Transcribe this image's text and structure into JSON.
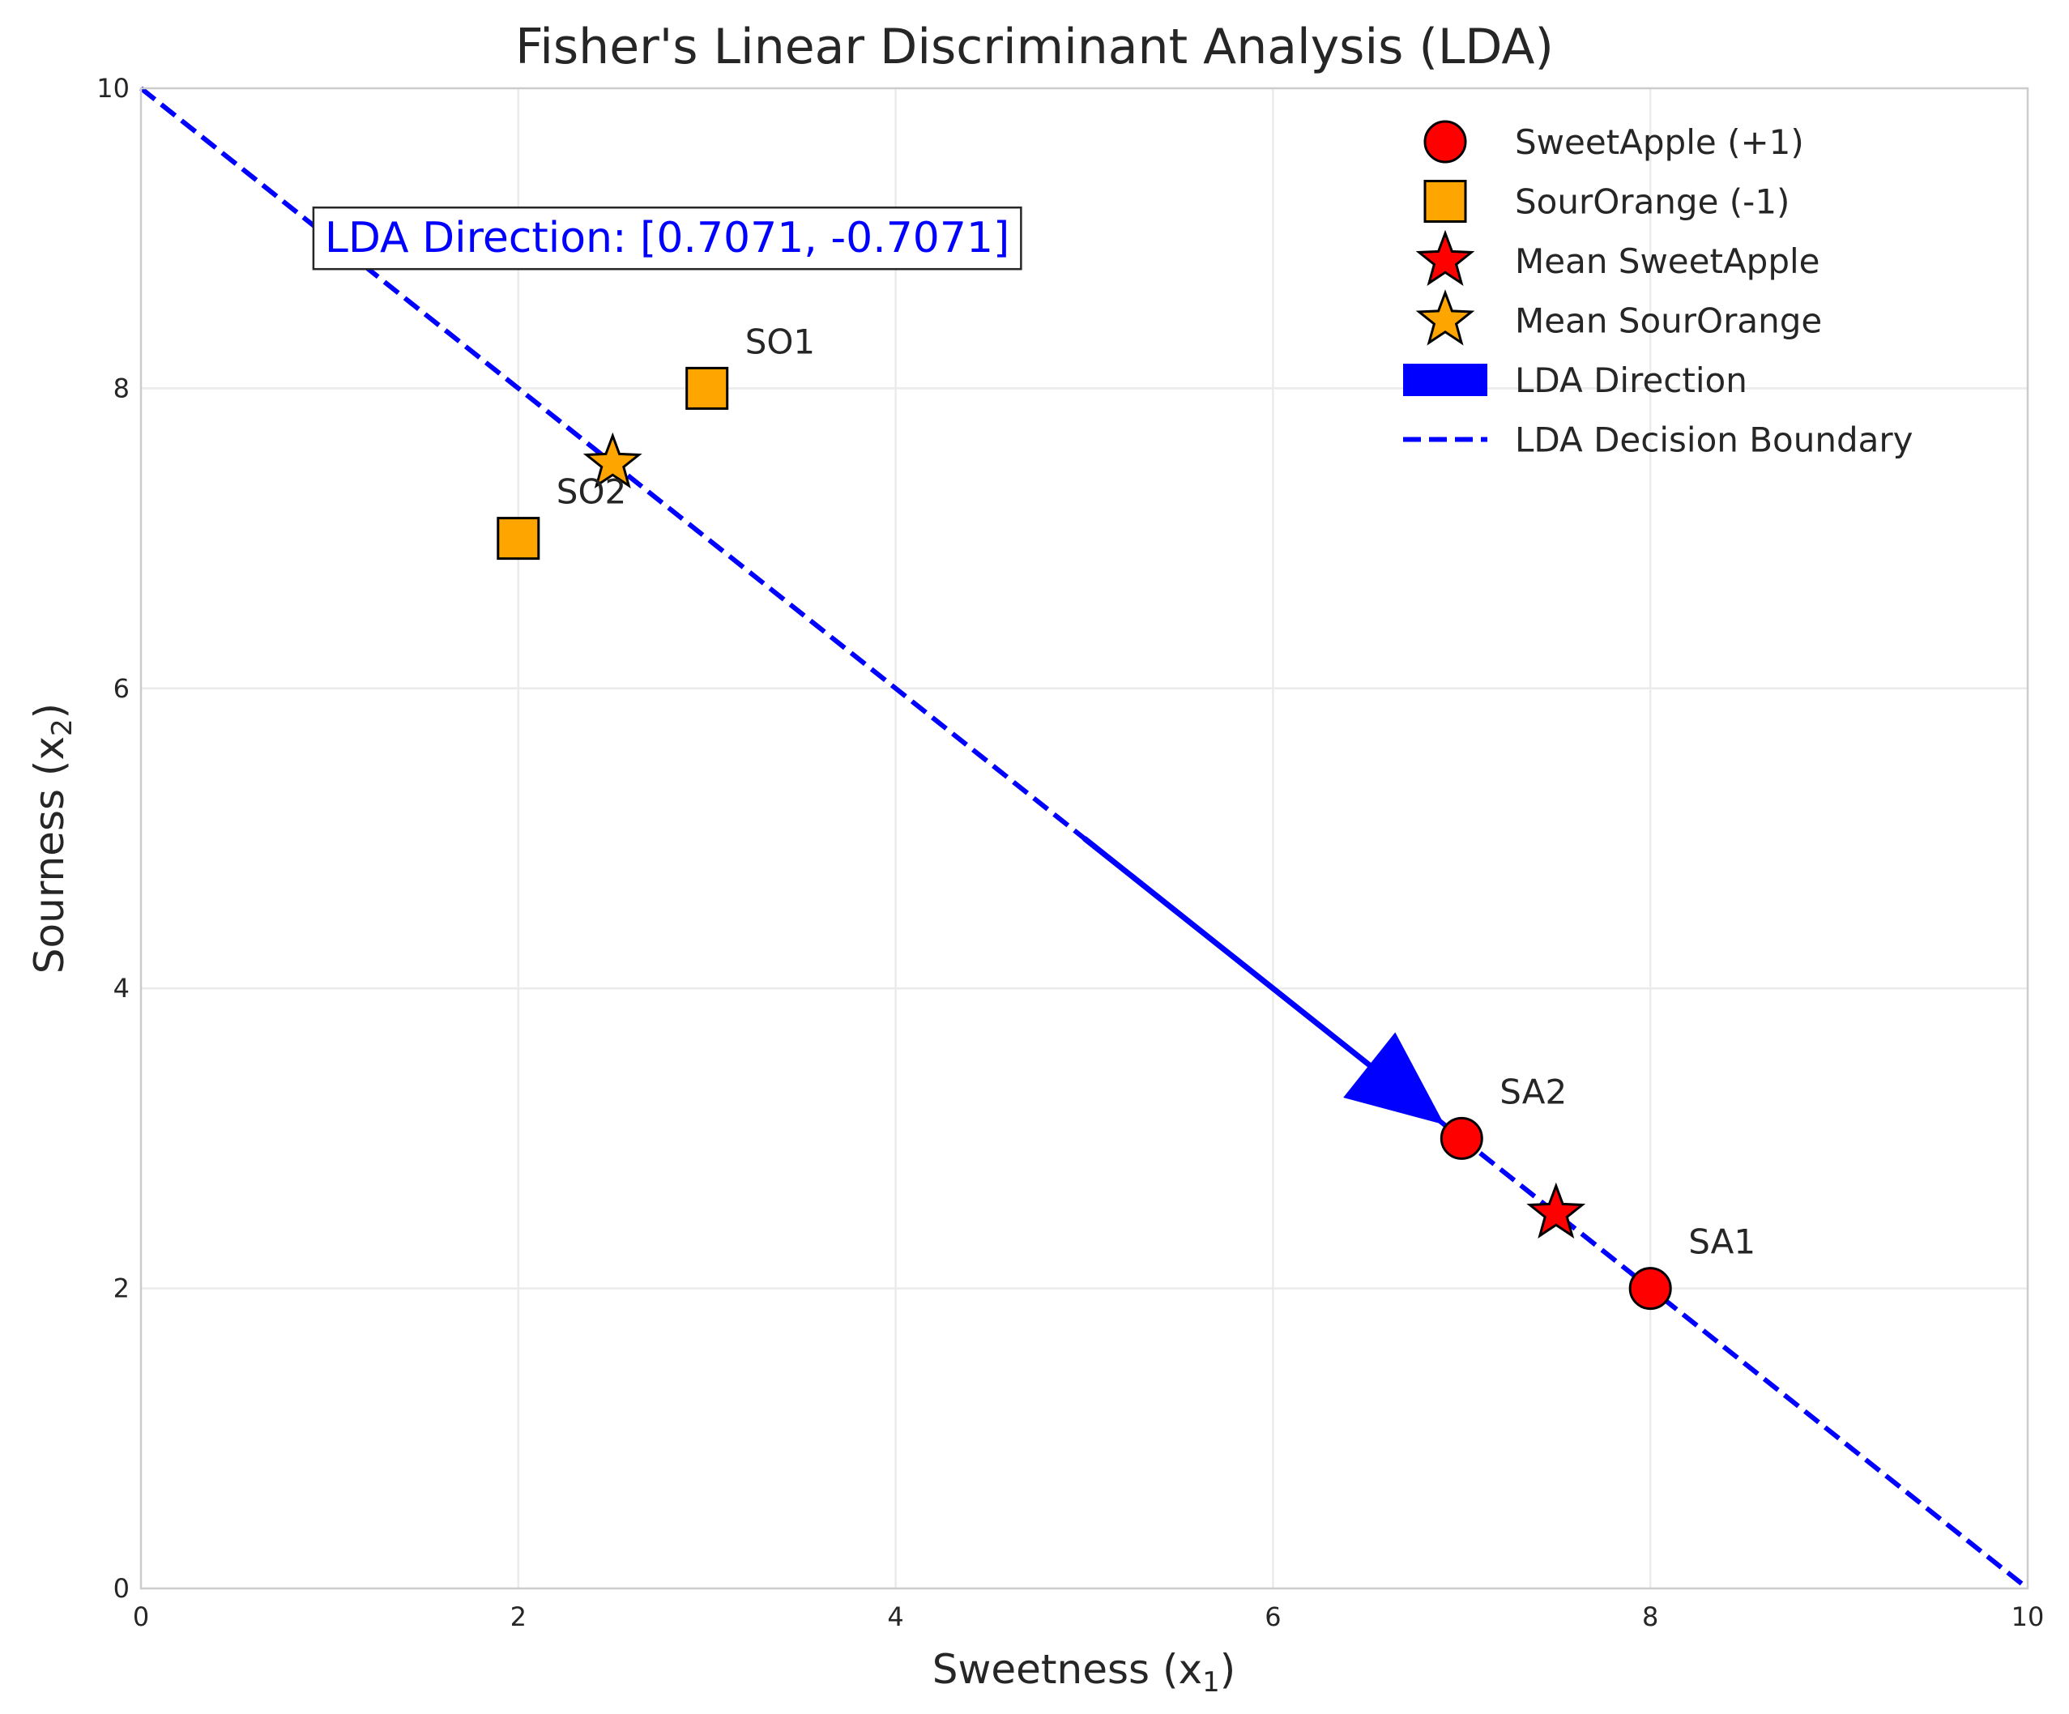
{
  "chart_data": {
    "type": "scatter",
    "title": "Fisher's Linear Discriminant Analysis (LDA)",
    "xlabel": "Sweetness (x",
    "xlabel_sub": "1",
    "xlabel_close": ")",
    "ylabel": "Sourness (x",
    "ylabel_sub": "2",
    "ylabel_close": ")",
    "xlim": [
      0,
      10
    ],
    "ylim": [
      0,
      10
    ],
    "x_ticks": [
      0,
      2,
      4,
      6,
      8,
      10
    ],
    "y_ticks": [
      0,
      2,
      4,
      6,
      8,
      10
    ],
    "x_tick_labels": [
      "0",
      "2",
      "4",
      "6",
      "8",
      "10"
    ],
    "y_tick_labels": [
      "0",
      "2",
      "4",
      "6",
      "8",
      "10"
    ],
    "grid": true,
    "legend_position": "top-right",
    "series": [
      {
        "name": "SweetApple (+1)",
        "marker": "circle",
        "color": "#ff0000",
        "points": [
          {
            "x": 8,
            "y": 2,
            "label": "SA1"
          },
          {
            "x": 7,
            "y": 3,
            "label": "SA2"
          }
        ]
      },
      {
        "name": "SourOrange (-1)",
        "marker": "square",
        "color": "#ffa500",
        "points": [
          {
            "x": 3,
            "y": 8,
            "label": "SO1"
          },
          {
            "x": 2,
            "y": 7,
            "label": "SO2"
          }
        ]
      },
      {
        "name": "Mean SweetApple",
        "marker": "star",
        "color": "#ff0000",
        "points": [
          {
            "x": 7.5,
            "y": 2.5
          }
        ]
      },
      {
        "name": "Mean SourOrange",
        "marker": "star",
        "color": "#ffa500",
        "points": [
          {
            "x": 2.5,
            "y": 7.5
          }
        ]
      }
    ],
    "lda_direction": {
      "name": "LDA Direction",
      "color": "#0000ff",
      "start": {
        "x": 5,
        "y": 5
      },
      "end": {
        "x": 6.9,
        "y": 3.1
      }
    },
    "decision_boundary": {
      "name": "LDA Decision Boundary",
      "color": "#0000ff",
      "style": "dashed",
      "from": {
        "x": 0,
        "y": 10
      },
      "to": {
        "x": 10,
        "y": 0
      }
    },
    "annotation_box": {
      "text": "LDA Direction: [0.7071, -0.7071]",
      "x": 1,
      "y": 9
    }
  }
}
